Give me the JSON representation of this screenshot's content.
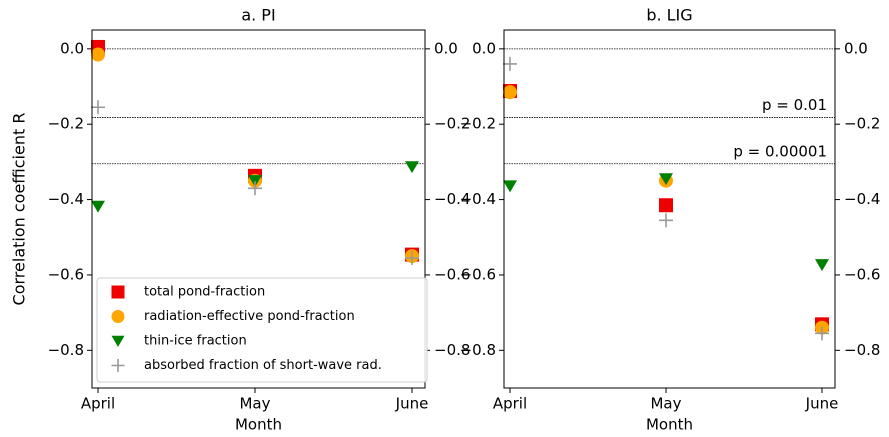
{
  "chart_data": [
    {
      "type": "scatter",
      "title": "a. PI",
      "xlabel": "Month",
      "ylabel": "Correlation coefficient R",
      "categories": [
        "April",
        "May",
        "June"
      ],
      "series": [
        {
          "name": "total pond-fraction",
          "marker": "square",
          "color": "#ee0000",
          "values": [
            0.005,
            -0.337,
            -0.546
          ]
        },
        {
          "name": "radiation-effective pond-fraction",
          "marker": "circle",
          "color": "#ffa500",
          "values": [
            -0.015,
            -0.35,
            -0.55
          ]
        },
        {
          "name": "thin-ice fraction",
          "marker": "triangle-down",
          "color": "#008000",
          "values": [
            -0.418,
            -0.35,
            -0.313
          ]
        },
        {
          "name": "absorbed fraction of short-wave rad.",
          "marker": "plus",
          "color": "#999999",
          "values": [
            -0.155,
            -0.37,
            -0.555
          ]
        }
      ],
      "ylim": [
        -0.9,
        0.05
      ],
      "yticks": [
        {
          "value": 0,
          "label": "0.0"
        },
        {
          "value": -0.2,
          "label": "−0.2"
        },
        {
          "value": -0.4,
          "label": "−0.4"
        },
        {
          "value": -0.6,
          "label": "−0.6"
        },
        {
          "value": -0.8,
          "label": "−0.8"
        }
      ],
      "y2lim": [
        -0.9,
        0.05
      ],
      "y2ticks": [
        {
          "value": 0,
          "label": "0.0"
        },
        {
          "value": -0.2,
          "label": "−0.2"
        },
        {
          "value": -0.4,
          "label": "−0.4"
        },
        {
          "value": -0.6,
          "label": "−0.6"
        },
        {
          "value": -0.8,
          "label": "−0.8"
        }
      ],
      "hlines": [
        0,
        -0.182,
        -0.305
      ],
      "legend": "lower left"
    },
    {
      "type": "scatter",
      "title": "b. LIG",
      "xlabel": "Month",
      "categories": [
        "April",
        "May",
        "June"
      ],
      "series": [
        {
          "marker": "square",
          "color": "#ee0000",
          "values": [
            -0.112,
            -0.415,
            -0.731
          ]
        },
        {
          "marker": "circle",
          "color": "#ffa500",
          "values": [
            -0.115,
            -0.35,
            -0.74
          ]
        },
        {
          "marker": "triangle-down",
          "color": "#008000",
          "values": [
            -0.364,
            -0.345,
            -0.573
          ]
        },
        {
          "marker": "plus",
          "color": "#999999",
          "values": [
            -0.04,
            -0.455,
            -0.755
          ]
        }
      ],
      "ylim": [
        -0.9,
        0.05
      ],
      "yticks": [
        {
          "value": 0,
          "label": "0.0"
        },
        {
          "value": -0.2,
          "label": "−0.2"
        },
        {
          "value": -0.4,
          "label": "−0.4"
        },
        {
          "value": -0.6,
          "label": "−0.6"
        },
        {
          "value": -0.8,
          "label": "−0.8"
        }
      ],
      "y2lim": [
        -0.9,
        0.05
      ],
      "y2ticks": [
        {
          "value": 0,
          "label": "0.0"
        },
        {
          "value": -0.2,
          "label": "−0.2"
        },
        {
          "value": -0.4,
          "label": "−0.4"
        },
        {
          "value": -0.6,
          "label": "−0.6"
        },
        {
          "value": -0.8,
          "label": "−0.8"
        }
      ],
      "hlines": [
        {
          "value": 0
        },
        {
          "value": -0.182,
          "label": "p = 0.01"
        },
        {
          "value": -0.305,
          "label": "p = 0.00001"
        }
      ]
    }
  ]
}
